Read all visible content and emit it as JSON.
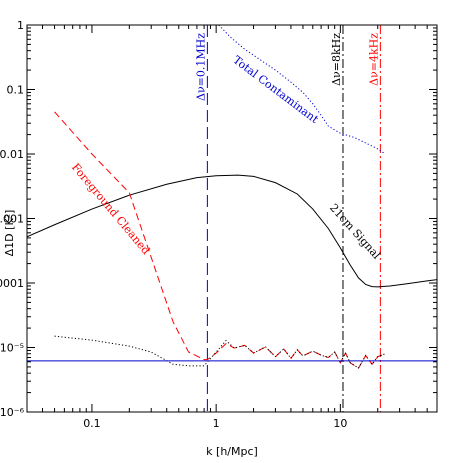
{
  "chart_data": {
    "type": "line",
    "xscale": "log",
    "yscale": "log",
    "xlim": [
      0.03,
      60
    ],
    "ylim": [
      1e-06,
      1
    ],
    "xlabel": "k [h/Mpc]",
    "ylabel": "Δ1D [K²]",
    "xticks": [
      {
        "value": 0.1,
        "label": "0.1"
      },
      {
        "value": 1,
        "label": "1"
      },
      {
        "value": 10,
        "label": "10"
      }
    ],
    "yticks": [
      {
        "value": 1e-06,
        "label": "10⁻⁶"
      },
      {
        "value": 1e-05,
        "label": "10⁻⁵"
      },
      {
        "value": 0.0001,
        "label": "0.0001"
      },
      {
        "value": 0.001,
        "label": "0.001"
      },
      {
        "value": 0.01,
        "label": "0.01"
      },
      {
        "value": 0.1,
        "label": "0.1"
      },
      {
        "value": 1,
        "label": "1"
      }
    ],
    "series": [
      {
        "id": "signal",
        "name": "21cm Signal",
        "color": "#000000",
        "dash": "solid",
        "x": [
          0.03,
          0.05,
          0.1,
          0.2,
          0.4,
          0.7,
          1.0,
          1.5,
          2.0,
          3.0,
          4.5,
          6.0,
          8.0,
          10.0,
          12.0,
          14.0,
          16.0,
          18.0,
          20.0,
          25.0,
          35.0,
          50.0,
          60.0
        ],
        "y": [
          0.00052,
          0.0008,
          0.0014,
          0.0023,
          0.0034,
          0.0043,
          0.0046,
          0.0047,
          0.0045,
          0.0036,
          0.0024,
          0.0014,
          0.0007,
          0.00035,
          0.00019,
          0.00012,
          9.5e-05,
          8.8e-05,
          8.7e-05,
          9e-05,
          9.8e-05,
          0.000108,
          0.000113
        ]
      },
      {
        "id": "contaminant",
        "name": "Total Contaminant",
        "color": "#0000cc",
        "dash": "dotted",
        "x": [
          1.05,
          1.3,
          1.7,
          2.2,
          3.0,
          4.0,
          5.0,
          6.0,
          7.0,
          8.0,
          10.0,
          13.0,
          17.0,
          20.0,
          23.0
        ],
        "y": [
          1.0,
          0.65,
          0.42,
          0.3,
          0.2,
          0.13,
          0.09,
          0.06,
          0.04,
          0.027,
          0.021,
          0.018,
          0.014,
          0.012,
          0.01
        ]
      },
      {
        "id": "cleaned",
        "name": "Foreground Cleaned",
        "color": "#ff0000",
        "dash": "dashed",
        "x": [
          0.05,
          0.1,
          0.2,
          0.3,
          0.45,
          0.6,
          0.8,
          0.85,
          1.0,
          1.2,
          1.4,
          1.7,
          2.0,
          2.5,
          3.0,
          3.5,
          4.0,
          4.5,
          5.0,
          6.0,
          7.0,
          8.0,
          9.0,
          10.0,
          11.0,
          12.0,
          14.0,
          16.0,
          18.0,
          20.0,
          23.0
        ],
        "y": [
          0.045,
          0.01,
          0.0025,
          0.00025,
          2.5e-05,
          8.5e-06,
          6.5e-06,
          6.5e-06,
          8.2e-06,
          1.15e-05,
          9.8e-06,
          1.08e-05,
          8.2e-06,
          1.02e-05,
          7.2e-06,
          9.5e-06,
          6.8e-06,
          9.2e-06,
          7.4e-06,
          8.8e-06,
          7.6e-06,
          7e-06,
          8.5e-06,
          5.8e-06,
          8.2e-06,
          5.8e-06,
          4.8e-06,
          7.5e-06,
          5.5e-06,
          7.2e-06,
          8e-06
        ]
      },
      {
        "id": "residual",
        "name": "",
        "color": "#000000",
        "dash": "dotted",
        "x": [
          0.05,
          0.1,
          0.2,
          0.3,
          0.45,
          0.6,
          0.8,
          1.0,
          1.2,
          1.4,
          1.7,
          2.0,
          2.5,
          3.0,
          3.5,
          4.0,
          4.5,
          5.0,
          6.0,
          7.0,
          8.0,
          9.0,
          10.0,
          11.0,
          12.0,
          14.0,
          16.0,
          18.0,
          20.0,
          23.0
        ],
        "y": [
          1.5e-05,
          1.3e-05,
          1.05e-05,
          8.5e-06,
          5.5e-06,
          5.2e-06,
          5.2e-06,
          8.5e-06,
          1.28e-05,
          9.8e-06,
          1.08e-05,
          8.2e-06,
          1.02e-05,
          7.2e-06,
          9.5e-06,
          6.8e-06,
          9.2e-06,
          7.4e-06,
          8.8e-06,
          7.6e-06,
          7e-06,
          8.5e-06,
          5.8e-06,
          8.2e-06,
          5.8e-06,
          4.8e-06,
          7.5e-06,
          5.5e-06,
          7.2e-06,
          8e-06
        ]
      },
      {
        "id": "noise",
        "name": "",
        "color": "#0000cc",
        "dash": "solid",
        "x": [
          0.03,
          60
        ],
        "y": [
          6.2e-06,
          6.2e-06
        ]
      }
    ],
    "vlines": [
      {
        "id": "vline-01mhz",
        "x": 0.85,
        "label": "Δν=0.1MHz",
        "color": "#0000cc",
        "dash": "longdash"
      },
      {
        "id": "vline-8khz",
        "x": 10.5,
        "label": "Δν=8kHz",
        "color": "#000000",
        "dash": "dashdot"
      },
      {
        "id": "vline-4khz",
        "x": 21.0,
        "label": "Δν=4kHz",
        "color": "#ff0000",
        "dash": "dashdot"
      }
    ],
    "annotations": [
      {
        "id": "label-total-contaminant",
        "text": "Total Contaminant",
        "x": 2.9,
        "y": 0.09,
        "angle": 37,
        "color": "#0000cc"
      },
      {
        "id": "label-foreground-cleaned",
        "text": "Foreground Cleaned",
        "x": 0.135,
        "y": 0.0013,
        "angle": 50,
        "color": "#ff0000"
      },
      {
        "id": "label-21cm-signal",
        "text": "21cm Signal",
        "x": 12.5,
        "y": 0.00058,
        "angle": 48,
        "color": "#000000"
      }
    ]
  }
}
